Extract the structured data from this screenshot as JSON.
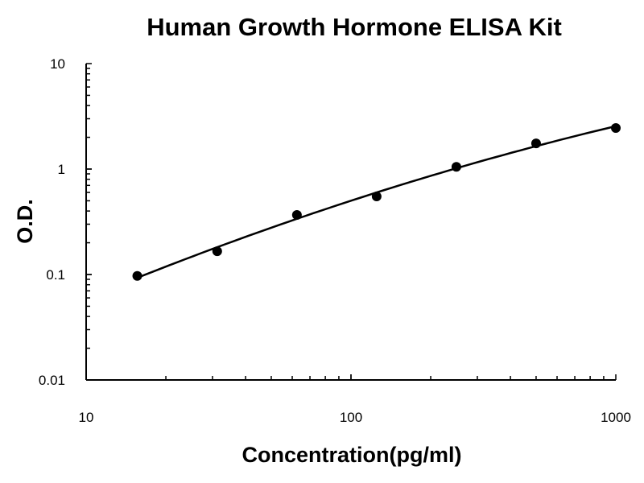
{
  "chart_data": {
    "type": "scatter",
    "title": "Human Growth Hormone ELISA Kit",
    "xlabel": "Concentration(pg/ml)",
    "ylabel": "O.D.",
    "xscale": "log",
    "yscale": "log",
    "xlim": [
      10,
      1000
    ],
    "ylim": [
      0.01,
      10
    ],
    "xticks": [
      "10",
      "100",
      "1000"
    ],
    "yticks": [
      "10",
      "1",
      "0.1",
      "0.01"
    ],
    "grid": false,
    "fit_line": true,
    "points": [
      {
        "x": 15.6,
        "y": 0.097
      },
      {
        "x": 31.25,
        "y": 0.166
      },
      {
        "x": 62.5,
        "y": 0.367
      },
      {
        "x": 125,
        "y": 0.55
      },
      {
        "x": 250,
        "y": 1.05
      },
      {
        "x": 500,
        "y": 1.75
      },
      {
        "x": 1000,
        "y": 2.45
      }
    ],
    "colors": {
      "marker": "#000000",
      "line": "#000000"
    }
  }
}
